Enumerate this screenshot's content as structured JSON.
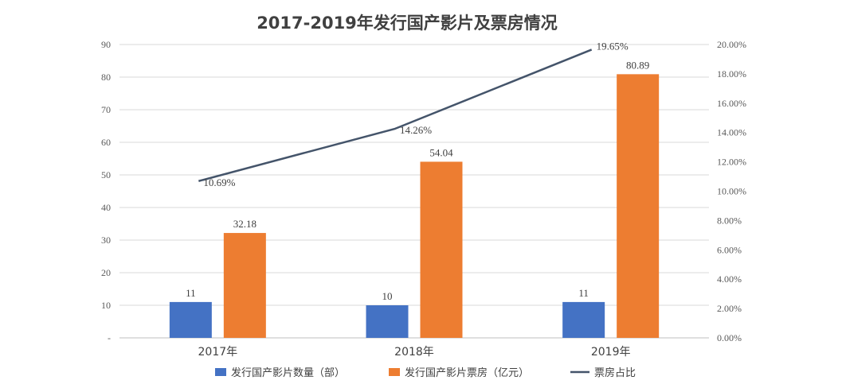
{
  "chart_data": {
    "type": "bar",
    "title": "2017-2019年发行国产影片及票房情况",
    "categories": [
      "2017年",
      "2018年",
      "2019年"
    ],
    "series": [
      {
        "name": "发行国产影片数量（部）",
        "type": "bar",
        "axis": "left",
        "color": "#4472c4",
        "values": [
          11,
          10,
          11
        ]
      },
      {
        "name": "发行国产影片票房（亿元）",
        "type": "bar",
        "axis": "left",
        "color": "#ed7d31",
        "values": [
          32.18,
          54.04,
          80.89
        ]
      },
      {
        "name": "票房占比",
        "type": "line",
        "axis": "right",
        "color": "#44546a",
        "values": [
          10.69,
          14.26,
          19.65
        ]
      }
    ],
    "data_labels": {
      "count": [
        "11",
        "10",
        "11"
      ],
      "boxoffice": [
        "32.18",
        "54.04",
        "80.89"
      ],
      "share": [
        "10.69%",
        "14.26%",
        "19.65%"
      ]
    },
    "y_left": {
      "ylim": [
        0,
        90
      ],
      "ticks": [
        "-",
        "10",
        "20",
        "30",
        "40",
        "50",
        "60",
        "70",
        "80",
        "90"
      ]
    },
    "y_right": {
      "ylim": [
        0,
        20
      ],
      "ticks": [
        "0.00%",
        "2.00%",
        "4.00%",
        "6.00%",
        "8.00%",
        "10.00%",
        "12.00%",
        "14.00%",
        "16.00%",
        "18.00%",
        "20.00%"
      ]
    },
    "grid": true,
    "legend_position": "bottom"
  }
}
